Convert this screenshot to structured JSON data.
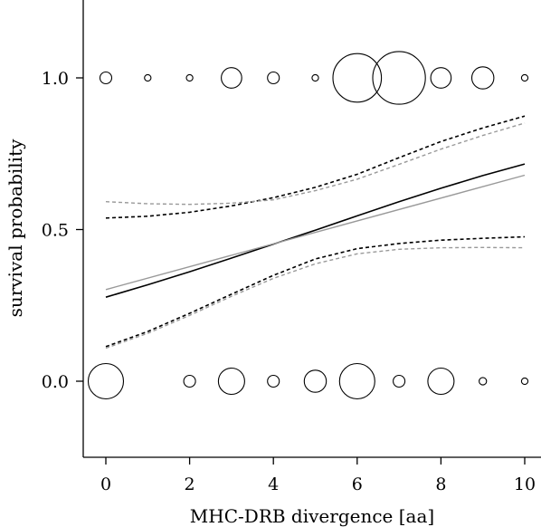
{
  "chart_data": {
    "type": "scatter",
    "xlabel": "MHC-DRB divergence [aa]",
    "ylabel": "survival probability",
    "xlim": [
      -0.5,
      10.4
    ],
    "ylim": [
      -0.25,
      1.25
    ],
    "x_ticks": [
      0,
      2,
      4,
      6,
      8,
      10
    ],
    "x_tick_labels": [
      "0",
      "2",
      "4",
      "6",
      "8",
      "10"
    ],
    "y_ticks": [
      0.0,
      0.5,
      1.0
    ],
    "y_tick_labels": [
      "0.0",
      "0.5",
      "1.0"
    ],
    "grid": false,
    "points": [
      {
        "x": 0,
        "y": 1.0,
        "size": 1
      },
      {
        "x": 1,
        "y": 1.0,
        "size": 0.3
      },
      {
        "x": 2,
        "y": 1.0,
        "size": 0.3
      },
      {
        "x": 3,
        "y": 1.0,
        "size": 3
      },
      {
        "x": 4,
        "y": 1.0,
        "size": 1
      },
      {
        "x": 5,
        "y": 1.0,
        "size": 0.3
      },
      {
        "x": 6,
        "y": 1.0,
        "size": 17
      },
      {
        "x": 7,
        "y": 1.0,
        "size": 20
      },
      {
        "x": 8,
        "y": 1.0,
        "size": 3
      },
      {
        "x": 9,
        "y": 1.0,
        "size": 3.5
      },
      {
        "x": 10,
        "y": 1.0,
        "size": 0.3
      },
      {
        "x": 0,
        "y": 0.0,
        "size": 9
      },
      {
        "x": 2,
        "y": 0.0,
        "size": 1
      },
      {
        "x": 3,
        "y": 0.0,
        "size": 5
      },
      {
        "x": 4,
        "y": 0.0,
        "size": 1
      },
      {
        "x": 5,
        "y": 0.0,
        "size": 3.5
      },
      {
        "x": 6,
        "y": 0.0,
        "size": 9
      },
      {
        "x": 7,
        "y": 0.0,
        "size": 1
      },
      {
        "x": 8,
        "y": 0.0,
        "size": 5
      },
      {
        "x": 9,
        "y": 0.0,
        "size": 0.4
      },
      {
        "x": 10,
        "y": 0.0,
        "size": 0.3
      }
    ],
    "series": [
      {
        "style": "solid",
        "color": "#000000",
        "x": [
          0,
          1,
          2,
          3,
          4,
          5,
          6,
          7,
          8,
          9,
          10
        ],
        "y": [
          0.277,
          0.318,
          0.361,
          0.406,
          0.452,
          0.498,
          0.545,
          0.592,
          0.636,
          0.678,
          0.716
        ]
      },
      {
        "style": "dashed",
        "color": "#000000",
        "x": [
          0,
          1,
          2,
          3,
          4,
          5,
          6,
          7,
          8,
          9,
          10
        ],
        "y": [
          0.538,
          0.544,
          0.557,
          0.578,
          0.605,
          0.639,
          0.682,
          0.737,
          0.79,
          0.835,
          0.874
        ]
      },
      {
        "style": "dashed",
        "color": "#000000",
        "x": [
          0,
          1,
          2,
          3,
          4,
          5,
          6,
          7,
          8,
          9,
          10
        ],
        "y": [
          0.114,
          0.164,
          0.224,
          0.287,
          0.349,
          0.403,
          0.437,
          0.454,
          0.465,
          0.471,
          0.476
        ]
      },
      {
        "style": "solid",
        "color": "#999999",
        "x": [
          0,
          10
        ],
        "y": [
          0.302,
          0.679
        ]
      },
      {
        "style": "dashed",
        "color": "#999999",
        "x": [
          0,
          1,
          2,
          3,
          4,
          5,
          6,
          7,
          8,
          9,
          10
        ],
        "y": [
          0.592,
          0.585,
          0.583,
          0.587,
          0.598,
          0.628,
          0.666,
          0.715,
          0.765,
          0.81,
          0.851
        ]
      },
      {
        "style": "dashed",
        "color": "#999999",
        "x": [
          0,
          1,
          2,
          3,
          4,
          5,
          6,
          7,
          8,
          9,
          10
        ],
        "y": [
          0.109,
          0.158,
          0.217,
          0.28,
          0.339,
          0.387,
          0.42,
          0.435,
          0.44,
          0.441,
          0.44
        ]
      }
    ]
  }
}
